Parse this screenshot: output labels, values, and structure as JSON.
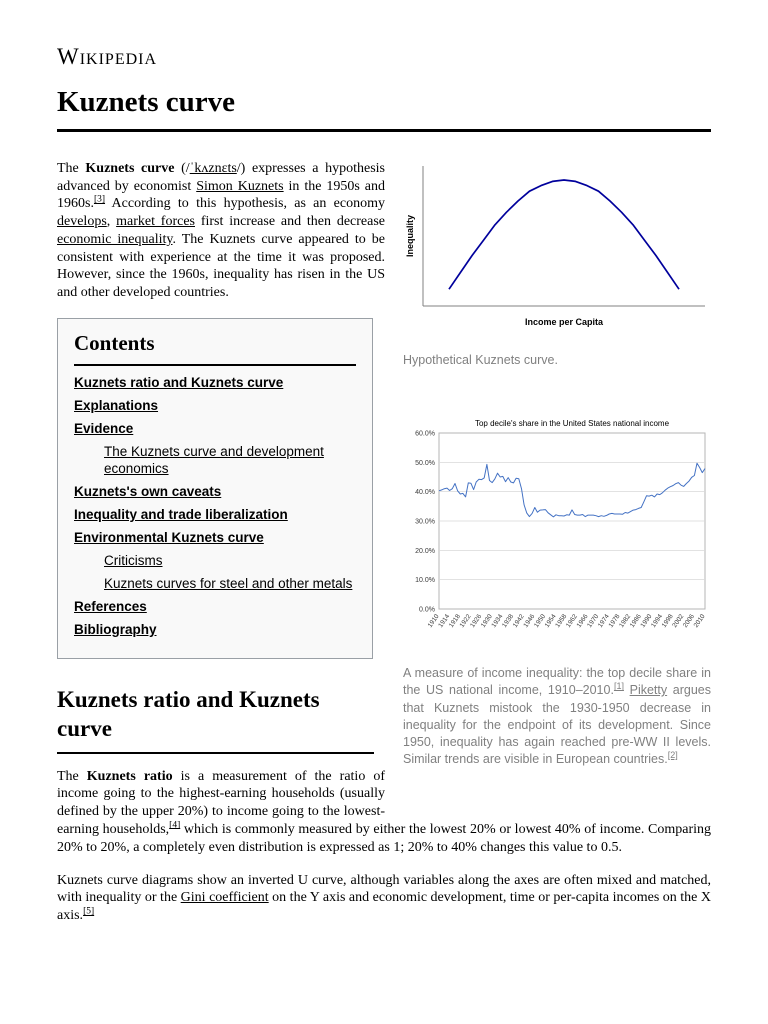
{
  "header": {
    "wordmark": "Wikipedia"
  },
  "page_title": "Kuznets curve",
  "lead": {
    "segments": [
      {
        "t": "The ",
        "k": "n"
      },
      {
        "t": "Kuznets curve",
        "k": "b"
      },
      {
        "t": " (/",
        "k": "n"
      },
      {
        "t": "ˈkʌznɛts",
        "k": "link"
      },
      {
        "t": "/) expresses a hypothesis advanced by economist ",
        "k": "n"
      },
      {
        "t": "Simon Kuznets",
        "k": "link"
      },
      {
        "t": " in the 1950s and 1960s.",
        "k": "n"
      },
      {
        "t": "[3]",
        "k": "ref"
      },
      {
        "t": " According to this hypothesis, as an economy ",
        "k": "n"
      },
      {
        "t": "develops",
        "k": "link"
      },
      {
        "t": ", ",
        "k": "n"
      },
      {
        "t": "market forces",
        "k": "link"
      },
      {
        "t": " first increase and then decrease ",
        "k": "n"
      },
      {
        "t": "economic inequality",
        "k": "link"
      },
      {
        "t": ". The Kuznets curve appeared to be consistent with experience at the time it was proposed. However, since the 1960s, inequality has risen in the US and other developed countries.",
        "k": "n"
      }
    ]
  },
  "figure1": {
    "caption": "Hypothetical Kuznets curve."
  },
  "figure2": {
    "caption_segments": [
      {
        "t": "A measure of income inequality: the top decile share in the US national income, 1910–2010.",
        "k": "n"
      },
      {
        "t": "[1]",
        "k": "ref"
      },
      {
        "t": " ",
        "k": "n"
      },
      {
        "t": "Piketty",
        "k": "link"
      },
      {
        "t": " argues that Kuznets mistook the 1930-1950 decrease in inequality for the endpoint of its development. Since 1950, inequality has again reached pre-WW II levels. Similar trends are visible in European countries.",
        "k": "n"
      },
      {
        "t": "[2]",
        "k": "ref"
      }
    ]
  },
  "toc": {
    "title": "Contents",
    "items": [
      {
        "label": "Kuznets ratio and Kuznets curve",
        "level": 1
      },
      {
        "label": "Explanations",
        "level": 1
      },
      {
        "label": "Evidence",
        "level": 1
      },
      {
        "label": "The Kuznets curve and development economics",
        "level": 2
      },
      {
        "label": "Kuznets's own caveats",
        "level": 1
      },
      {
        "label": "Inequality and trade liberalization",
        "level": 1
      },
      {
        "label": "Environmental Kuznets curve",
        "level": 1
      },
      {
        "label": "Criticisms",
        "level": 2
      },
      {
        "label": "Kuznets curves for steel and other metals",
        "level": 2
      },
      {
        "label": "References",
        "level": 1
      },
      {
        "label": "Bibliography",
        "level": 1
      }
    ]
  },
  "section1": {
    "heading": "Kuznets ratio and Kuznets curve",
    "para1_segments": [
      {
        "t": "The ",
        "k": "n"
      },
      {
        "t": "Kuznets ratio",
        "k": "b"
      },
      {
        "t": " is a measurement of the ratio of income going to the highest-earning households (usually defined by the upper 20%) to income going to the lowest-earning households,",
        "k": "n"
      },
      {
        "t": "[4]",
        "k": "ref"
      },
      {
        "t": " which is commonly measured by either the lowest 20% or lowest 40% of income. Comparing 20% to 20%, a completely even distribution is expressed as 1; 20% to 40% changes this value to 0.5.",
        "k": "n"
      }
    ],
    "para2_segments": [
      {
        "t": "Kuznets curve diagrams show an inverted U curve, although variables along the axes are often mixed and matched, with inequality or the ",
        "k": "n"
      },
      {
        "t": "Gini coefficient",
        "k": "link"
      },
      {
        "t": " on the Y axis and economic development, time or per-capita incomes on the X axis.",
        "k": "n"
      },
      {
        "t": "[5]",
        "k": "ref"
      }
    ]
  },
  "chart_data": [
    {
      "type": "line",
      "title": "Hypothetical Kuznets curve",
      "xlabel": "Income per Capita",
      "ylabel": "Inequality",
      "x": [
        0,
        0.05,
        0.1,
        0.15,
        0.2,
        0.25,
        0.3,
        0.35,
        0.4,
        0.45,
        0.5,
        0.55,
        0.6,
        0.65,
        0.7,
        0.75,
        0.8,
        0.85,
        0.9,
        0.95,
        1
      ],
      "values": [
        0.12,
        0.24,
        0.36,
        0.47,
        0.58,
        0.67,
        0.75,
        0.82,
        0.86,
        0.89,
        0.9,
        0.89,
        0.86,
        0.82,
        0.75,
        0.67,
        0.58,
        0.47,
        0.36,
        0.24,
        0.12
      ],
      "ylim": [
        0,
        1
      ],
      "grid": false,
      "axes_unlabeled": true,
      "color": "#00009c",
      "axis_color": "#808080"
    },
    {
      "type": "line",
      "title": "Top decile's share in the United States national income",
      "xlabel": "",
      "ylabel": "",
      "unit": "percent",
      "x_start": 1910,
      "x_end": 2010,
      "x_step": 1,
      "values": [
        40.3,
        40.6,
        41.0,
        41.2,
        40.4,
        41.0,
        42.8,
        40.3,
        39.2,
        39.4,
        38.2,
        43.0,
        42.9,
        40.7,
        43.3,
        44.2,
        44.1,
        44.7,
        49.3,
        43.8,
        43.1,
        44.4,
        46.3,
        45.0,
        45.2,
        43.4,
        44.8,
        43.3,
        43.0,
        44.6,
        44.4,
        41.0,
        35.5,
        32.7,
        31.5,
        32.6,
        34.6,
        33.0,
        33.7,
        33.8,
        33.9,
        32.8,
        32.1,
        31.4,
        32.1,
        31.8,
        31.8,
        31.7,
        32.1,
        32.0,
        33.8,
        32.2,
        32.0,
        32.0,
        32.2,
        31.5,
        32.0,
        32.0,
        32.0,
        31.8,
        31.5,
        31.8,
        31.6,
        31.9,
        32.4,
        32.6,
        32.4,
        32.4,
        32.4,
        32.3,
        32.9,
        32.7,
        33.2,
        33.7,
        33.9,
        34.3,
        34.6,
        36.5,
        38.6,
        38.5,
        38.8,
        38.2,
        39.2,
        39.0,
        39.6,
        40.5,
        41.2,
        41.7,
        42.1,
        42.7,
        43.1,
        42.2,
        41.8,
        42.8,
        43.6,
        44.9,
        45.5,
        49.7,
        48.2,
        46.5,
        47.9
      ],
      "ylim": [
        0,
        60
      ],
      "yticks": [
        0,
        10,
        20,
        30,
        40,
        50,
        60
      ],
      "ytick_labels": [
        "0.0%",
        "10.0%",
        "20.0%",
        "30.0%",
        "40.0%",
        "50.0%",
        "60.0%"
      ],
      "xticks": [
        1910,
        1914,
        1918,
        1922,
        1926,
        1930,
        1934,
        1938,
        1942,
        1946,
        1950,
        1954,
        1958,
        1962,
        1966,
        1970,
        1974,
        1978,
        1982,
        1986,
        1990,
        1994,
        1998,
        2002,
        2006,
        2010
      ],
      "grid": true,
      "legend": "none",
      "color": "#4472c4",
      "border_color": "#b5b5b5",
      "grid_color": "#d9d9d9"
    }
  ]
}
